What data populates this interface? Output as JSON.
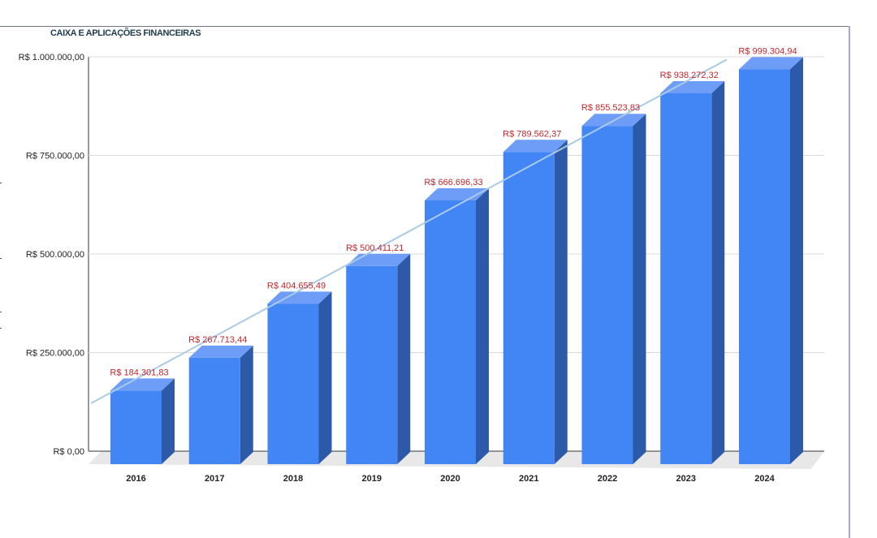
{
  "chart_data": {
    "type": "bar",
    "title": "CAIXA E APLICAÇÕES FINANCEIRAS",
    "categories": [
      "2016",
      "2017",
      "2018",
      "2019",
      "2020",
      "2021",
      "2022",
      "2023",
      "2024"
    ],
    "values": [
      184301.83,
      267713.44,
      404655.49,
      500411.21,
      666696.33,
      789562.37,
      855523.83,
      938272.32,
      999304.94
    ],
    "data_labels": [
      "R$ 184.301,83",
      "R$ 267.713,44",
      "R$ 404.655,49",
      "R$ 500.411,21",
      "R$ 666.696,33",
      "R$ 789.562,37",
      "R$ 855.523,83",
      "R$ 938.272,32",
      "R$ 999.304,94"
    ],
    "ylim": [
      0,
      1000000
    ],
    "yticks": [
      0,
      250000,
      500000,
      750000,
      1000000
    ],
    "ytick_labels": [
      "R$ 0,00",
      "R$ 250.000,00",
      "R$ 500.000,00",
      "R$ 750.000,00",
      "R$ 1.000.000,00"
    ],
    "xlabel": "",
    "ylabel": "",
    "grid": true,
    "trendline": "linear",
    "style": "3d-column",
    "colors": {
      "bar_front": "#4285f4",
      "bar_top": "#6d9df7",
      "bar_side": "#2d5aa8",
      "trendline": "#a9cbe6",
      "data_label": "#c0282d",
      "gridline": "#d9d9d9",
      "floor": "#e8e8e8"
    }
  }
}
